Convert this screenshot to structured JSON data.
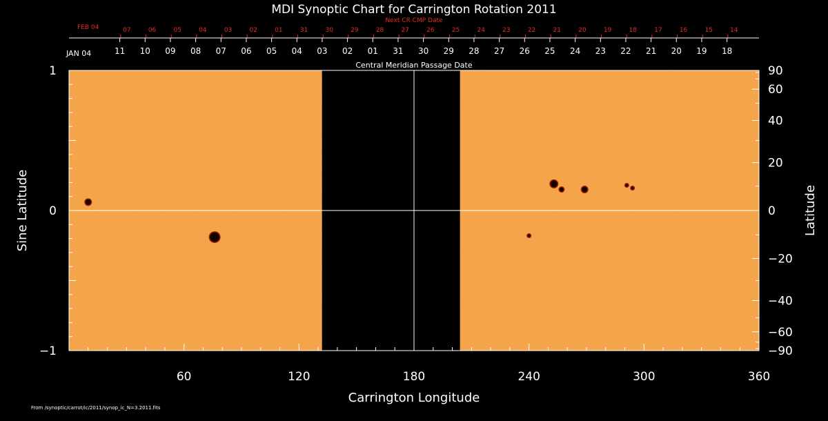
{
  "chart_data": {
    "type": "heatmap",
    "title": "MDI Synoptic Chart for Carrington Rotation 2011",
    "xlabel": "Carrington Longitude",
    "ylabel_left": "Sine Latitude",
    "ylabel_right": "Latitude",
    "xlim": [
      0,
      360
    ],
    "ylim": [
      -1,
      1
    ],
    "x_ticks": [
      60,
      120,
      180,
      240,
      300,
      360
    ],
    "y_left_ticks": [
      {
        "value": 1,
        "label": "1"
      },
      {
        "value": 0,
        "label": "0"
      },
      {
        "value": -1,
        "label": "−1"
      }
    ],
    "y_right_ticks": [
      90,
      60,
      40,
      20,
      0,
      -20,
      -40,
      -60,
      -90
    ],
    "y_right_labels": [
      "90",
      "60",
      "40",
      "20",
      "0",
      "−20",
      "−40",
      "−60",
      "−90"
    ],
    "data_gap": {
      "from": 132,
      "to": 204
    },
    "center_meridian": 180,
    "top_axis": {
      "label": "Central Meridian Passage Date",
      "start_month": "JAN 04",
      "dates": [
        {
          "lon": 26.5,
          "label": "11"
        },
        {
          "lon": 39.7,
          "label": "10"
        },
        {
          "lon": 52.9,
          "label": "09"
        },
        {
          "lon": 66.1,
          "label": "08"
        },
        {
          "lon": 79.3,
          "label": "07"
        },
        {
          "lon": 92.5,
          "label": "06"
        },
        {
          "lon": 105.7,
          "label": "05"
        },
        {
          "lon": 118.9,
          "label": "04"
        },
        {
          "lon": 132.1,
          "label": "03"
        },
        {
          "lon": 145.3,
          "label": "02"
        },
        {
          "lon": 158.5,
          "label": "01"
        },
        {
          "lon": 171.7,
          "label": "31"
        },
        {
          "lon": 184.9,
          "label": "30"
        },
        {
          "lon": 198.1,
          "label": "29"
        },
        {
          "lon": 211.3,
          "label": "28"
        },
        {
          "lon": 224.5,
          "label": "27"
        },
        {
          "lon": 237.7,
          "label": "26"
        },
        {
          "lon": 250.9,
          "label": "25"
        },
        {
          "lon": 264.1,
          "label": "24"
        },
        {
          "lon": 277.3,
          "label": "23"
        },
        {
          "lon": 290.5,
          "label": "22"
        },
        {
          "lon": 303.7,
          "label": "21"
        },
        {
          "lon": 316.9,
          "label": "20"
        },
        {
          "lon": 330.1,
          "label": "19"
        },
        {
          "lon": 343.3,
          "label": "18"
        }
      ]
    },
    "next_axis": {
      "label": "Next CR CMP Date",
      "start_month": "FEB 04",
      "dates": [
        {
          "lon": 30.2,
          "label": "07"
        },
        {
          "lon": 43.4,
          "label": "06"
        },
        {
          "lon": 56.6,
          "label": "05"
        },
        {
          "lon": 69.8,
          "label": "04"
        },
        {
          "lon": 83.0,
          "label": "03"
        },
        {
          "lon": 96.2,
          "label": "02"
        },
        {
          "lon": 109.4,
          "label": "01"
        },
        {
          "lon": 122.6,
          "label": "31"
        },
        {
          "lon": 135.8,
          "label": "30"
        },
        {
          "lon": 149.0,
          "label": "29"
        },
        {
          "lon": 162.2,
          "label": "28"
        },
        {
          "lon": 175.4,
          "label": "27"
        },
        {
          "lon": 188.6,
          "label": "26"
        },
        {
          "lon": 201.8,
          "label": "25"
        },
        {
          "lon": 215.0,
          "label": "24"
        },
        {
          "lon": 228.2,
          "label": "23"
        },
        {
          "lon": 241.4,
          "label": "22"
        },
        {
          "lon": 254.6,
          "label": "21"
        },
        {
          "lon": 267.8,
          "label": "20"
        },
        {
          "lon": 281.0,
          "label": "19"
        },
        {
          "lon": 294.2,
          "label": "18"
        },
        {
          "lon": 307.4,
          "label": "17"
        },
        {
          "lon": 320.6,
          "label": "16"
        },
        {
          "lon": 333.8,
          "label": "15"
        },
        {
          "lon": 347.0,
          "label": "14"
        }
      ]
    },
    "sunspots": [
      {
        "lon": 10,
        "sinlat": 0.06,
        "r": 4
      },
      {
        "lon": 76,
        "sinlat": -0.19,
        "r": 7
      },
      {
        "lon": 253,
        "sinlat": 0.19,
        "r": 5
      },
      {
        "lon": 257,
        "sinlat": 0.15,
        "r": 3
      },
      {
        "lon": 269,
        "sinlat": 0.15,
        "r": 4
      },
      {
        "lon": 291,
        "sinlat": 0.18,
        "r": 2
      },
      {
        "lon": 294,
        "sinlat": 0.16,
        "r": 2
      },
      {
        "lon": 240,
        "sinlat": -0.18,
        "r": 2
      }
    ],
    "colors": {
      "background": "#000000",
      "map": "#f5a348",
      "map_dark": "#d9741c",
      "map_light": "#ffc27a",
      "spot": "#140400",
      "spot_rim": "#a02000",
      "next_axis": "#e03020"
    }
  },
  "footer": {
    "source": "From /synoptic/carrot/ic/2011/synop_ic_N=3.2011.fits"
  }
}
